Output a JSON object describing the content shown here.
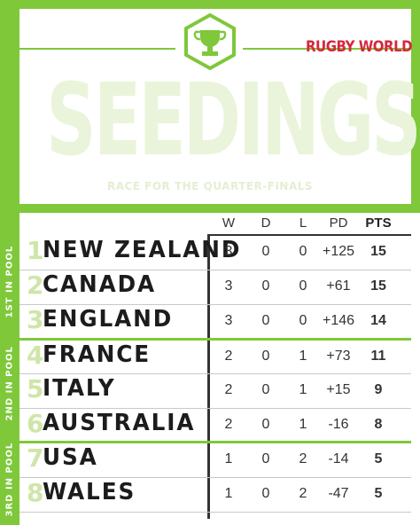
{
  "header": {
    "brand": "RUGBY WORLD",
    "title": "SEEDINGS",
    "subtitle": "RACE FOR THE QUARTER-FINALS"
  },
  "columns": [
    "W",
    "D",
    "L",
    "PD",
    "PTS"
  ],
  "pool_labels": [
    "1ST IN POOL",
    "2ND IN POOL",
    "3RD IN POOL"
  ],
  "rows": [
    {
      "rank": "1",
      "team": "NEW ZEALAND",
      "w": "3",
      "d": "0",
      "l": "0",
      "pd": "+125",
      "pts": "15"
    },
    {
      "rank": "2",
      "team": "CANADA",
      "w": "3",
      "d": "0",
      "l": "0",
      "pd": "+61",
      "pts": "15"
    },
    {
      "rank": "3",
      "team": "ENGLAND",
      "w": "3",
      "d": "0",
      "l": "0",
      "pd": "+146",
      "pts": "14"
    },
    {
      "rank": "4",
      "team": "FRANCE",
      "w": "2",
      "d": "0",
      "l": "1",
      "pd": "+73",
      "pts": "11"
    },
    {
      "rank": "5",
      "team": "ITALY",
      "w": "2",
      "d": "0",
      "l": "1",
      "pd": "+15",
      "pts": "9"
    },
    {
      "rank": "6",
      "team": "AUSTRALIA",
      "w": "2",
      "d": "0",
      "l": "1",
      "pd": "-16",
      "pts": "8"
    },
    {
      "rank": "7",
      "team": "USA",
      "w": "1",
      "d": "0",
      "l": "2",
      "pd": "-14",
      "pts": "5"
    },
    {
      "rank": "8",
      "team": "WALES",
      "w": "1",
      "d": "0",
      "l": "2",
      "pd": "-47",
      "pts": "5"
    }
  ],
  "colors": {
    "accent": "#7ec83a",
    "brand": "#d7263d",
    "text": "#1c1c1c"
  },
  "icons": {
    "badge": "trophy-hexagon-icon"
  }
}
